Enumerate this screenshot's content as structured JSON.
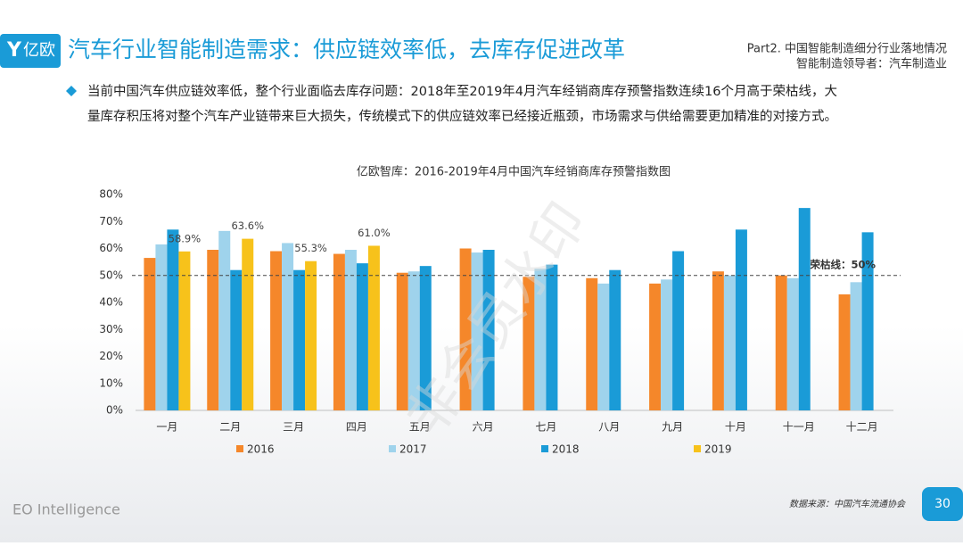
{
  "header": {
    "logo": "亿欧",
    "title": "汽车行业智能制造需求：供应链效率低，去库存促进改革",
    "part": "Part2. 中国智能制造细分行业落地情况",
    "section": "智能制造领导者：汽车制造业"
  },
  "bullet": [
    "当前中国汽车供应链效率低，整个行业面临去库存问题：2018年至2019年4月汽车经销商库存预警指数连续16个月高于荣枯线，大",
    "量库存积压将对整个汽车产业链带来巨大损失，传统模式下的供应链效率已经接近瓶颈，市场需求与供给需要更加精准的对接方式。"
  ],
  "watermark": "非会员水印",
  "chart_data": {
    "type": "bar",
    "title": "亿欧智库：2016-2019年4月中国汽车经销商库存预警指数图",
    "categories": [
      "一月",
      "二月",
      "三月",
      "四月",
      "五月",
      "六月",
      "七月",
      "八月",
      "九月",
      "十月",
      "十一月",
      "十二月"
    ],
    "series": [
      {
        "name": "2016",
        "color": "#f5872a",
        "values": [
          56.5,
          59.5,
          59,
          58,
          51,
          60,
          49.5,
          49,
          47,
          51.5,
          50,
          43
        ]
      },
      {
        "name": "2017",
        "color": "#9fd3ec",
        "values": [
          61.5,
          66.5,
          62,
          59.5,
          51.5,
          58.5,
          52.5,
          47,
          48.5,
          50,
          49,
          47.5
        ]
      },
      {
        "name": "2018",
        "color": "#1a9bd7",
        "values": [
          67,
          52,
          52,
          54.5,
          53.5,
          59.5,
          54,
          52,
          59,
          67,
          75,
          66
        ]
      },
      {
        "name": "2019",
        "color": "#f7c21b",
        "values": [
          58.9,
          63.6,
          55.3,
          61.0,
          null,
          null,
          null,
          null,
          null,
          null,
          null,
          null
        ],
        "value_labels": [
          "58.9%",
          "63.6%",
          "55.3%",
          "61.0%",
          null,
          null,
          null,
          null,
          null,
          null,
          null,
          null
        ]
      }
    ],
    "ylim": [
      0,
      80
    ],
    "yticks": [
      {
        "value": 0,
        "label": "0%"
      },
      {
        "value": 10,
        "label": "10%"
      },
      {
        "value": 20,
        "label": "20%"
      },
      {
        "value": 30,
        "label": "30%"
      },
      {
        "value": 40,
        "label": "40%"
      },
      {
        "value": 50,
        "label": "50%"
      },
      {
        "value": 60,
        "label": "60%"
      },
      {
        "value": 70,
        "label": "70%"
      },
      {
        "value": 80,
        "label": "80%"
      }
    ],
    "grid": false,
    "reference_line": {
      "value": 50,
      "label": "荣枯线：50%"
    },
    "legend": "bottom"
  },
  "footer": {
    "brand": "EO Intelligence",
    "source": "数据来源：中国汽车流通协会",
    "page": "30"
  }
}
